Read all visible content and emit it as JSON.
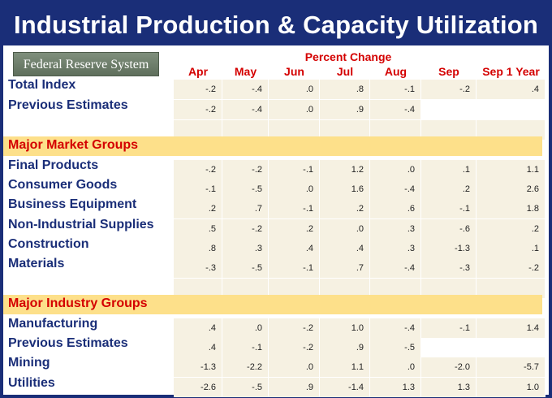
{
  "title": "Industrial Production & Capacity Utilization",
  "logo_text": "Federal Reserve System",
  "percent_change_label": "Percent Change",
  "columns": [
    "Apr",
    "May",
    "Jun",
    "Jul",
    "Aug",
    "Sep",
    "Sep 1 Year"
  ],
  "rows": [
    {
      "label": "Total Index",
      "values": [
        "-.2",
        "-.4",
        ".0",
        ".8",
        "-.1",
        "-.2",
        ".4"
      ]
    },
    {
      "label": "Previous Estimates",
      "values": [
        "-.2",
        "-.4",
        ".0",
        ".9",
        "-.4",
        "",
        ""
      ]
    },
    {
      "label": "Major Market Groups",
      "group": true
    },
    {
      "label": "Final Products",
      "values": [
        "-.2",
        "-.2",
        "-.1",
        "1.2",
        ".0",
        ".1",
        "1.1"
      ]
    },
    {
      "label": "Consumer Goods",
      "values": [
        "-.1",
        "-.5",
        ".0",
        "1.6",
        "-.4",
        ".2",
        "2.6"
      ]
    },
    {
      "label": "Business Equipment",
      "values": [
        ".2",
        ".7",
        "-.1",
        ".2",
        ".6",
        "-.1",
        "1.8"
      ]
    },
    {
      "label": "Non-Industrial Supplies",
      "values": [
        ".5",
        "-.2",
        ".2",
        ".0",
        ".3",
        "-.6",
        ".2"
      ]
    },
    {
      "label": "Construction",
      "values": [
        ".8",
        ".3",
        ".4",
        ".4",
        ".3",
        "-1.3",
        ".1"
      ]
    },
    {
      "label": "Materials",
      "values": [
        "-.3",
        "-.5",
        "-.1",
        ".7",
        "-.4",
        "-.3",
        "-.2"
      ]
    },
    {
      "label": "Major Industry Groups",
      "group": true
    },
    {
      "label": "Manufacturing",
      "values": [
        ".4",
        ".0",
        "-.2",
        "1.0",
        "-.4",
        "-.1",
        "1.4"
      ]
    },
    {
      "label": "Previous Estimates",
      "values": [
        ".4",
        "-.1",
        "-.2",
        ".9",
        "-.5",
        "",
        ""
      ]
    },
    {
      "label": "Mining",
      "values": [
        "-1.3",
        "-2.2",
        ".0",
        "1.1",
        ".0",
        "-2.0",
        "-5.7"
      ]
    },
    {
      "label": "Utilities",
      "values": [
        "-2.6",
        "-.5",
        ".9",
        "-1.4",
        "1.3",
        "1.3",
        "1.0"
      ]
    }
  ]
}
